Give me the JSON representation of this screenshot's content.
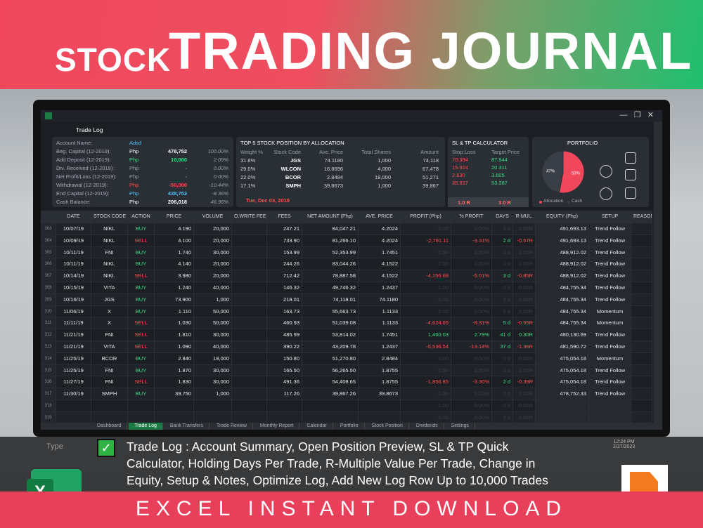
{
  "banner": {
    "title_small": "STOCK",
    "title_large": "TRADING JOURNAL"
  },
  "window": {
    "title": "Trade Log"
  },
  "account": {
    "name_label": "Account Name:",
    "name_value": "Adsd",
    "rows": [
      {
        "label": "Beg. Capital (12-2019):",
        "currency": "Php",
        "amount": "478,752",
        "pct": "100.00%",
        "color": "#ffffff"
      },
      {
        "label": "Add Deposit (12-2019):",
        "currency": "Php",
        "amount": "10,000",
        "pct": "2.09%",
        "color": "#3ddc84"
      },
      {
        "label": "Div. Received (12-2019):",
        "currency": "Php",
        "amount": "-",
        "pct": "0.00%",
        "color": "#9aa0a8"
      },
      {
        "label": "Net Profit/Loss (12-2019):",
        "currency": "Php",
        "amount": "-",
        "pct": "0.00%",
        "color": "#9aa0a8"
      },
      {
        "label": "Withdrawal (12-2019):",
        "currency": "Php",
        "amount": "-50,000",
        "pct": "-10.44%",
        "color": "#ff4d4d"
      },
      {
        "label": "End Capital (12-2019):",
        "currency": "Php",
        "amount": "438,752",
        "pct": "-8.36%",
        "color": "#4fc3f7"
      },
      {
        "label": "Cash Balance:",
        "currency": "Php",
        "amount": "206,018",
        "pct": "46.96%",
        "color": "#ffffff"
      }
    ]
  },
  "top5": {
    "title": "TOP 5 STOCK POSITION BY ALLOCATION",
    "headers": [
      "Weight %",
      "Stock Code",
      "Ave. Price",
      "Total Shares",
      "Amount"
    ],
    "rows": [
      [
        "31.8%",
        "JGS",
        "74.1180",
        "1,000",
        "74,118"
      ],
      [
        "29.0%",
        "WLCON",
        "16.8696",
        "4,000",
        "67,478"
      ],
      [
        "22.0%",
        "BCOR",
        "2.8484",
        "18,000",
        "51,271"
      ],
      [
        "17.1%",
        "SMPH",
        "39.8673",
        "1,000",
        "39,867"
      ]
    ],
    "date": "Tue, Dec 03, 2019"
  },
  "calculator": {
    "title": "SL & TP CALCULATOR",
    "headers": [
      "Stop Loss",
      "Target Price"
    ],
    "rows": [
      [
        "70.394",
        "87.944"
      ],
      [
        "15.924",
        "20.311"
      ],
      [
        "2.630",
        "3.605"
      ],
      [
        "35.837",
        "53.387"
      ]
    ],
    "footer": [
      "1.0 R",
      "3.0 R"
    ]
  },
  "portfolio": {
    "title": "PORTFOLIO",
    "slices": [
      {
        "name": "Allocation",
        "value": 53,
        "value_label": "53%",
        "color": "#f0475d"
      },
      {
        "name": "Cash",
        "value": 47,
        "value_label": "47%",
        "color": "#3a3f47"
      }
    ]
  },
  "trade_log": {
    "closing_action": "SELL",
    "action_colors": {
      "BUY": "#3ddc84",
      "SELL": "#ff4d4d"
    },
    "headers": [
      "",
      "DATE",
      "STOCK CODE",
      "ACTION",
      "PRICE",
      "VOLUME",
      "O.WRITE FEES",
      "FEES",
      "NET AMOUNT (Php)",
      "AVE. PRICE",
      "PROFIT (Php)",
      "% PROFIT",
      "DAYS",
      "R-MUL.",
      "EQUITY (Php)",
      "SETUP",
      "REASON FO"
    ],
    "rows": [
      [
        "303",
        "10/07/19",
        "NIKL",
        "BUY",
        "4.190",
        "20,000",
        "",
        "247.21",
        "84,047.21",
        "4.2024",
        "0.00",
        "0.00%",
        "0 d",
        "0.00R",
        "491,693.13",
        "Trend Follow",
        ""
      ],
      [
        "304",
        "10/09/19",
        "NIKL",
        "SELL",
        "4.100",
        "20,000",
        "",
        "733.90",
        "81,266.10",
        "4.2024",
        "-2,781.11",
        "-3.31%",
        "2 d",
        "-0.57R",
        "491,693.13",
        "Trend Follow",
        ""
      ],
      [
        "305",
        "10/11/19",
        "FNI",
        "BUY",
        "1.740",
        "30,000",
        "",
        "153.99",
        "52,353.99",
        "1.7451",
        "0.00",
        "0.00%",
        "0 d",
        "0.00R",
        "488,912.02",
        "Trend Follow",
        ""
      ],
      [
        "306",
        "10/11/19",
        "NIKL",
        "BUY",
        "4.140",
        "20,000",
        "",
        "244.26",
        "83,044.26",
        "4.1522",
        "0.00",
        "0.00%",
        "0 d",
        "0.00R",
        "488,912.02",
        "Trend Follow",
        ""
      ],
      [
        "307",
        "10/14/19",
        "NIKL",
        "SELL",
        "3.980",
        "20,000",
        "",
        "712.42",
        "78,887.58",
        "4.1522",
        "-4,156.68",
        "-5.01%",
        "3 d",
        "-0.85R",
        "488,912.02",
        "Trend Follow",
        ""
      ],
      [
        "308",
        "10/15/19",
        "VITA",
        "BUY",
        "1.240",
        "40,000",
        "",
        "146.32",
        "49,746.32",
        "1.2437",
        "0.00",
        "0.00%",
        "0 d",
        "0.00R",
        "484,755.34",
        "Trend Follow",
        ""
      ],
      [
        "309",
        "10/16/19",
        "JGS",
        "BUY",
        "73.900",
        "1,000",
        "",
        "218.01",
        "74,118.01",
        "74.1180",
        "0.00",
        "0.00%",
        "0 d",
        "0.00R",
        "484,755.34",
        "Trend Follow",
        ""
      ],
      [
        "310",
        "11/06/19",
        "X",
        "BUY",
        "1.110",
        "50,000",
        "",
        "163.73",
        "55,663.73",
        "1.1133",
        "0.00",
        "0.00%",
        "0 d",
        "0.00R",
        "484,755.34",
        "Momentum",
        ""
      ],
      [
        "311",
        "11/11/19",
        "X",
        "SELL",
        "1.030",
        "50,000",
        "",
        "460.93",
        "51,039.08",
        "1.1133",
        "-4,624.65",
        "-8.31%",
        "5 d",
        "-0.95R",
        "484,755.34",
        "Momentum",
        ""
      ],
      [
        "312",
        "11/21/19",
        "FNI",
        "SELL",
        "1.810",
        "30,000",
        "",
        "485.99",
        "53,814.02",
        "1.7451",
        "1,460.03",
        "2.79%",
        "41 d",
        "0.30R",
        "480,130.69",
        "Trend Follow",
        ""
      ],
      [
        "313",
        "11/21/19",
        "VITA",
        "SELL",
        "1.090",
        "40,000",
        "",
        "390.22",
        "43,209.78",
        "1.2437",
        "-6,536.54",
        "-13.14%",
        "37 d",
        "-1.36R",
        "481,590.72",
        "Trend Follow",
        ""
      ],
      [
        "314",
        "11/25/19",
        "BCOR",
        "BUY",
        "2.840",
        "18,000",
        "",
        "150.80",
        "51,270.80",
        "2.8484",
        "0.00",
        "0.00%",
        "0 d",
        "0.00R",
        "475,054.18",
        "Momentum",
        ""
      ],
      [
        "315",
        "11/25/19",
        "FNI",
        "BUY",
        "1.870",
        "30,000",
        "",
        "165.50",
        "56,265.50",
        "1.8755",
        "0.00",
        "0.00%",
        "0 d",
        "0.00R",
        "475,054.18",
        "Trend Follow",
        ""
      ],
      [
        "316",
        "11/27/19",
        "FNI",
        "SELL",
        "1.830",
        "30,000",
        "",
        "491.36",
        "54,408.65",
        "1.8755",
        "-1,856.85",
        "-3.30%",
        "2 d",
        "-0.39R",
        "475,054.18",
        "Trend Follow",
        ""
      ],
      [
        "317",
        "11/30/19",
        "SMPH",
        "BUY",
        "39.750",
        "1,000",
        "",
        "117.26",
        "39,867.26",
        "39.8673",
        "0.00",
        "0.00%",
        "0 d",
        "0.00R",
        "478,752.33",
        "Trend Follow",
        ""
      ],
      [
        "318",
        "",
        "",
        "",
        "",
        "",
        "",
        "",
        "",
        "",
        "0.00",
        "0.00%",
        "0 d",
        "0.00R",
        "",
        "",
        ""
      ],
      [
        "319",
        "",
        "",
        "",
        "",
        "",
        "",
        "",
        "",
        "",
        "0.00",
        "0.00%",
        "0 d",
        "0.00R",
        "",
        "",
        ""
      ]
    ]
  },
  "tabs": [
    "Dashboard",
    "Trade Log",
    "Bank Transfers",
    "Trade Review",
    "Monthly Report",
    "Calendar",
    "Portfolio",
    "Stock Position",
    "Dividends",
    "Settings"
  ],
  "taskbar": {
    "search": "Type",
    "time": "12:24 PM",
    "date": "2/27/2023"
  },
  "caption": {
    "lines": [
      "Trade Log : Account Summary, Open Position Preview, SL & TP Quick",
      "Calculator, Holding Days Per Trade, R-Multiple Value Per Trade, Change in",
      "Equity, Setup & Notes, Optimize Log, Add New Log Row Up to 10,000 Trades"
    ]
  },
  "footer": {
    "text": "EXCEL INSTANT DOWNLOAD"
  },
  "icons": {
    "excel": "X"
  }
}
